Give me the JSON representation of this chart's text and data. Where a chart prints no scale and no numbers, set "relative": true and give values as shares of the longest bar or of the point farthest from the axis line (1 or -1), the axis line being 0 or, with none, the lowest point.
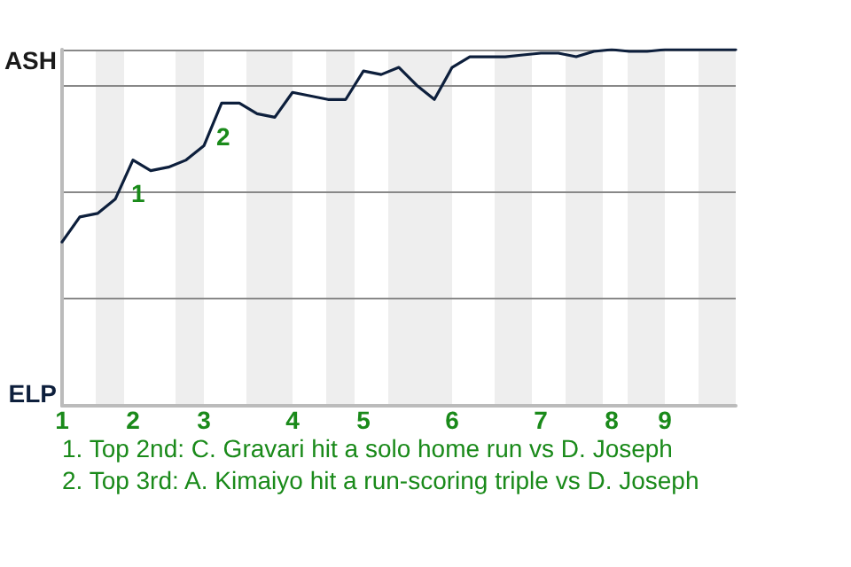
{
  "chart_data": {
    "type": "line",
    "relative": true,
    "categories": [
      "1",
      null,
      null,
      null,
      "2",
      null,
      null,
      null,
      "3",
      null,
      null,
      null,
      null,
      "4",
      null,
      null,
      null,
      "5",
      null,
      null,
      null,
      null,
      "6",
      null,
      null,
      null,
      null,
      "7",
      null,
      null,
      null,
      "8",
      null,
      null,
      "9",
      null,
      null,
      null,
      null
    ],
    "series": [
      {
        "color": "#0d1f3c",
        "values": [
          0.46,
          0.53,
          0.54,
          0.58,
          0.69,
          0.66,
          0.67,
          0.69,
          0.73,
          0.85,
          0.85,
          0.82,
          0.81,
          0.88,
          0.87,
          0.86,
          0.86,
          0.94,
          0.93,
          0.95,
          0.9,
          0.86,
          0.95,
          0.98,
          0.98,
          0.98,
          0.985,
          0.99,
          0.99,
          0.98,
          0.995,
          1,
          0.995,
          0.995,
          1,
          1,
          1,
          1,
          1
        ]
      }
    ],
    "grid": "y",
    "marker": "none",
    "line_style": "solid",
    "annotations": [
      "ASH",
      "ELP",
      "1. Top 2nd: C. Gravari hit a solo home run vs D. Joseph",
      "2. Top 3rd: A. Kimaiyo hit a run-scoring triple vs D. Joseph",
      "1",
      "2"
    ]
  }
}
